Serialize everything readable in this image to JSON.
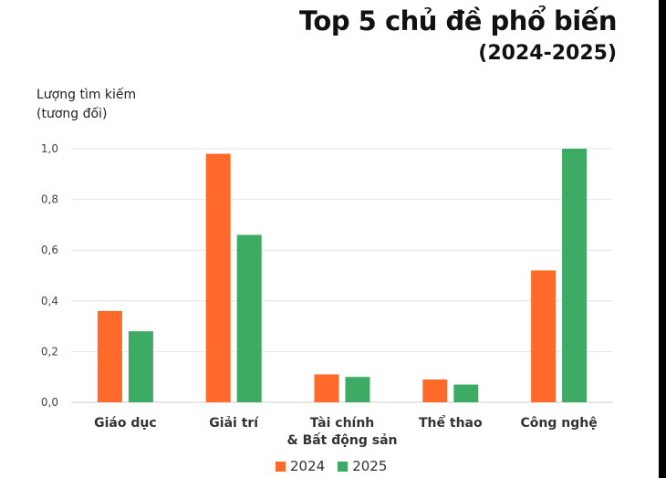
{
  "chart_data": {
    "type": "bar",
    "title": "Top 5 chủ đề phổ biến",
    "subtitle": "(2024-2025)",
    "ylabel": "Lượng tìm kiếm\n(tương đối)",
    "xlabel": "",
    "categories": [
      [
        "Giáo dục"
      ],
      [
        "Giải trí"
      ],
      [
        "Tài chính",
        "& Bất động sản"
      ],
      [
        "Thể thao"
      ],
      [
        "Công nghệ"
      ]
    ],
    "series": [
      {
        "name": "2024",
        "color": "#ff6a2b",
        "values": [
          0.36,
          0.98,
          0.11,
          0.09,
          0.52
        ]
      },
      {
        "name": "2025",
        "color": "#3dab64",
        "values": [
          0.28,
          0.66,
          0.1,
          0.07,
          1.0
        ]
      }
    ],
    "ylim": [
      0,
      1.0
    ],
    "yticks": [
      "0,0",
      "0,2",
      "0,4",
      "0,6",
      "0,8",
      "1,0"
    ],
    "grid": true,
    "legend": "bottom-center"
  }
}
